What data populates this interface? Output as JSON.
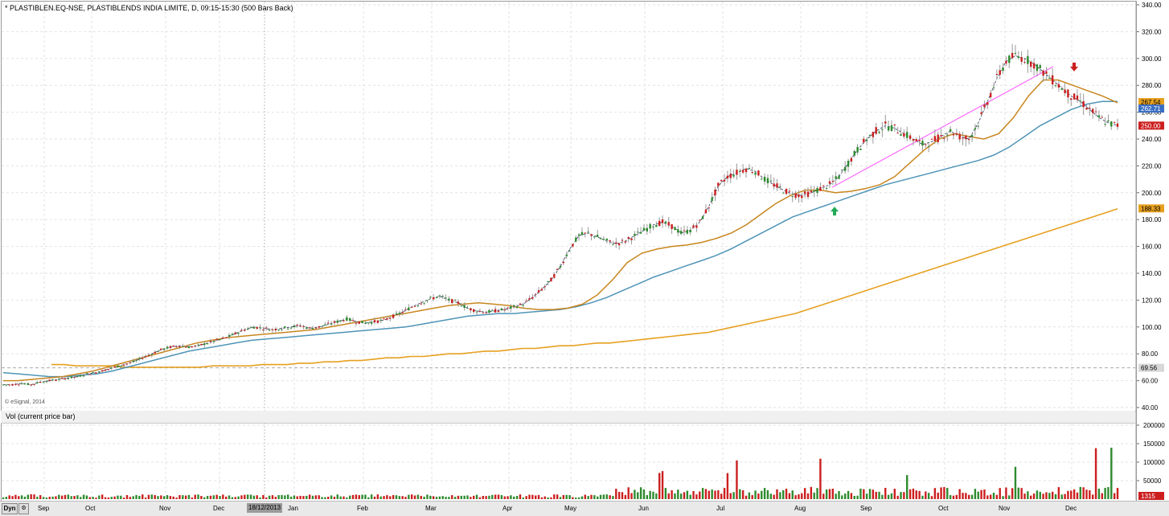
{
  "header": {
    "title": "* PLASTIBLEN.EQ-NSE, PLASTIBLENDS INDIA LIMITE, D, 09:15-15:30 (500 Bars Back)"
  },
  "copyright": "© eSignal, 2014",
  "volume_panel": {
    "title": "Vol (current price bar)"
  },
  "bottom_bar": {
    "dyn_label": "Dyn",
    "cursor_date": "18/12/2013"
  },
  "colors": {
    "up": "#2e8b2e",
    "down": "#cc1f1f",
    "ema_short": "#c8861e",
    "ema_mid": "#4f94b8",
    "sma_long": "#e6a020",
    "trendline": "#ff4fff",
    "grid": "#e2e2e2"
  },
  "chart_data": [
    {
      "type": "line",
      "panel": "price",
      "x_axis_months": [
        "Sep",
        "Oct",
        "Nov",
        "Dec",
        "Jan",
        "Feb",
        "Mar",
        "Apr",
        "May",
        "Jun",
        "Jul",
        "Aug",
        "Sep",
        "Oct",
        "Nov",
        "Dec"
      ],
      "y_ticks": [
        "340.00",
        "320.00",
        "300.00",
        "280.00",
        "260.00",
        "240.00",
        "220.00",
        "200.00",
        "180.00",
        "160.00",
        "140.00",
        "120.00",
        "100.00",
        "80.00",
        "60.00",
        "40.00"
      ],
      "ylim": [
        40,
        340
      ],
      "price_closes": [
        57,
        57,
        58,
        57,
        59,
        60,
        61,
        62,
        63,
        65,
        66,
        68,
        70,
        72,
        74,
        77,
        80,
        83,
        85,
        86,
        85,
        86,
        88,
        90,
        92,
        95,
        98,
        100,
        99,
        98,
        99,
        100,
        101,
        99,
        100,
        102,
        104,
        106,
        104,
        103,
        104,
        105,
        108,
        111,
        115,
        118,
        121,
        123,
        120,
        118,
        114,
        112,
        111,
        112,
        113,
        115,
        117,
        122,
        128,
        135,
        145,
        158,
        168,
        170,
        167,
        164,
        162,
        164,
        168,
        172,
        176,
        178,
        175,
        170,
        172,
        178,
        190,
        205,
        212,
        215,
        218,
        216,
        210,
        206,
        202,
        199,
        198,
        200,
        203,
        206,
        212,
        222,
        232,
        240,
        246,
        250,
        248,
        244,
        240,
        236,
        238,
        242,
        246,
        242,
        240,
        252,
        268,
        285,
        298,
        302,
        300,
        296,
        290,
        284,
        278,
        272,
        268,
        262,
        256,
        252,
        250
      ],
      "up_marker": {
        "x_month": "Aug",
        "price": 186
      },
      "down_marker": {
        "x_month": "Dec",
        "price": 294
      },
      "series": [
        {
          "role": "sma_long",
          "values": [
            72,
            72,
            71,
            71,
            71,
            71,
            70,
            70,
            70,
            70,
            70,
            70,
            70,
            71,
            71,
            71,
            71,
            72,
            72,
            72,
            73,
            73,
            74,
            74,
            75,
            75,
            76,
            77,
            77,
            78,
            78,
            79,
            80,
            80,
            81,
            82,
            82,
            83,
            84,
            84,
            85,
            86,
            86,
            87,
            88,
            88,
            89,
            90,
            91,
            92,
            93,
            94,
            95,
            96,
            98,
            100,
            102,
            104,
            106,
            108,
            110,
            113,
            116,
            119,
            122,
            125,
            128,
            131,
            134,
            137,
            140,
            143,
            146,
            149,
            152,
            155,
            158,
            161,
            164,
            167,
            170,
            173,
            176,
            179,
            182,
            185,
            188
          ]
        },
        {
          "role": "ema_mid",
          "values": [
            66,
            65,
            64,
            63,
            63,
            64,
            65,
            67,
            70,
            73,
            76,
            79,
            82,
            84,
            86,
            88,
            90,
            91,
            92,
            93,
            94,
            95,
            96,
            97,
            98,
            99,
            100,
            102,
            104,
            106,
            108,
            109,
            110,
            110,
            111,
            112,
            113,
            115,
            118,
            122,
            127,
            132,
            137,
            141,
            145,
            149,
            153,
            158,
            164,
            170,
            176,
            182,
            186,
            190,
            194,
            198,
            202,
            206,
            209,
            212,
            215,
            218,
            221,
            224,
            228,
            234,
            242,
            250,
            256,
            262,
            266,
            268,
            268
          ]
        },
        {
          "role": "ema_short",
          "values": [
            60,
            60,
            61,
            62,
            63,
            65,
            67,
            70,
            73,
            76,
            79,
            82,
            85,
            88,
            90,
            92,
            93,
            94,
            95,
            96,
            97,
            98,
            100,
            102,
            104,
            106,
            108,
            110,
            112,
            114,
            116,
            117,
            118,
            117,
            116,
            114,
            113,
            113,
            114,
            117,
            124,
            135,
            148,
            155,
            158,
            160,
            161,
            163,
            166,
            170,
            176,
            184,
            192,
            198,
            202,
            202,
            200,
            201,
            203,
            206,
            212,
            222,
            232,
            240,
            244,
            242,
            240,
            244,
            256,
            272,
            284,
            284,
            280,
            276,
            272,
            267
          ]
        },
        {
          "role": "trendline",
          "from_price": 204,
          "to_price": 294
        }
      ]
    },
    {
      "type": "bar",
      "panel": "volume",
      "title": "Vol (current price bar)",
      "y_ticks": [
        "200000",
        "150000",
        "100000",
        "50000"
      ],
      "ylim": [
        0,
        200000
      ],
      "current_value": "1315"
    }
  ],
  "price_labels": [
    {
      "value": "267.54",
      "price": 267.54,
      "color": "#e6a020"
    },
    {
      "value": "262.71",
      "price": 262.71,
      "color": "#3a6fc4"
    },
    {
      "value": "250.00",
      "price": 250.0,
      "color": "#cc1f1f"
    },
    {
      "value": "188.33",
      "price": 188.33,
      "color": "#e6a020"
    },
    {
      "value": "69.56",
      "price": 69.56,
      "color": "#d8d8d8"
    }
  ]
}
